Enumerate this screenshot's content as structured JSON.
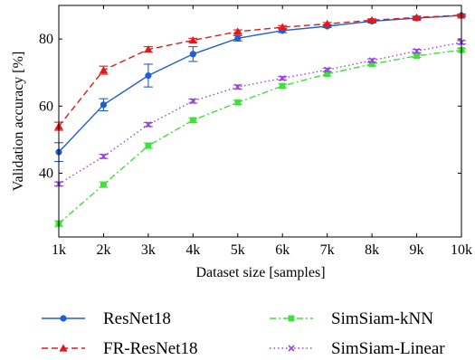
{
  "chart_data": {
    "type": "line",
    "title": "",
    "xlabel": "Dataset size [samples]",
    "ylabel": "Validation accuracy [%]",
    "x": [
      1000,
      2000,
      3000,
      4000,
      5000,
      6000,
      7000,
      8000,
      9000,
      10000
    ],
    "x_tick_labels": [
      "1k",
      "2k",
      "3k",
      "4k",
      "5k",
      "6k",
      "7k",
      "8k",
      "9k",
      "10k"
    ],
    "xlim": [
      1000,
      10000
    ],
    "ylim": [
      21,
      90
    ],
    "y_ticks": [
      40,
      60,
      80
    ],
    "grid": false,
    "legend_position": "below",
    "series": [
      {
        "name": "ResNet18",
        "values": [
          46.3,
          60.4,
          69.1,
          75.5,
          80.2,
          82.5,
          83.8,
          85.3,
          86.2,
          87.0
        ],
        "error": [
          2.8,
          1.8,
          3.4,
          2.2,
          0.8,
          0.6,
          0.4,
          0.4,
          0.4,
          0.3
        ],
        "color": "#1f5ed6",
        "dash": "solid",
        "marker": "circle"
      },
      {
        "name": "FR-ResNet18",
        "values": [
          54.0,
          70.7,
          76.9,
          79.6,
          82.2,
          83.5,
          84.5,
          85.6,
          86.4,
          87.1
        ],
        "error": [
          1.2,
          1.2,
          0.8,
          0.6,
          0.5,
          0.5,
          0.4,
          0.4,
          0.4,
          0.3
        ],
        "color": "#e01a1a",
        "dash": "dashed",
        "marker": "triangle"
      },
      {
        "name": "SimSiam-kNN",
        "values": [
          25.0,
          36.6,
          48.2,
          55.8,
          61.1,
          66.0,
          69.6,
          72.5,
          75.0,
          76.7
        ],
        "error": [
          0.8,
          0.8,
          0.8,
          0.7,
          0.6,
          0.6,
          0.6,
          0.5,
          0.5,
          0.5
        ],
        "color": "#3fe03a",
        "dash": "dashdot",
        "marker": "square"
      },
      {
        "name": "SimSiam-Linear",
        "values": [
          36.8,
          45.0,
          54.5,
          61.5,
          65.7,
          68.3,
          70.8,
          73.6,
          76.4,
          79.0
        ],
        "error": [
          0.6,
          0.6,
          0.6,
          0.6,
          0.6,
          0.5,
          0.5,
          0.5,
          0.5,
          0.5
        ],
        "color": "#9a44e0",
        "dash": "dotted",
        "marker": "x"
      }
    ]
  }
}
